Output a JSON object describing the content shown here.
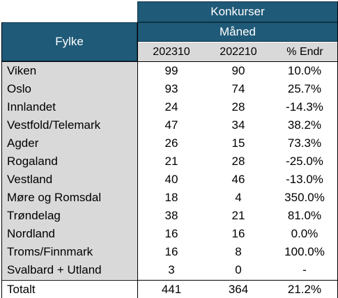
{
  "header": {
    "group_title": "Konkurser",
    "period_label": "Måned",
    "row_label": "Fylke"
  },
  "columns": [
    "202310",
    "202210",
    "% Endr"
  ],
  "rows": [
    {
      "fylke": "Viken",
      "v2023": "99",
      "v2022": "90",
      "pct": "10.0%"
    },
    {
      "fylke": "Oslo",
      "v2023": "93",
      "v2022": "74",
      "pct": "25.7%"
    },
    {
      "fylke": "Innlandet",
      "v2023": "24",
      "v2022": "28",
      "pct": "-14.3%"
    },
    {
      "fylke": "Vestfold/Telemark",
      "v2023": "47",
      "v2022": "34",
      "pct": "38.2%"
    },
    {
      "fylke": "Agder",
      "v2023": "26",
      "v2022": "15",
      "pct": "73.3%"
    },
    {
      "fylke": "Rogaland",
      "v2023": "21",
      "v2022": "28",
      "pct": "-25.0%"
    },
    {
      "fylke": "Vestland",
      "v2023": "40",
      "v2022": "46",
      "pct": "-13.0%"
    },
    {
      "fylke": "Møre og Romsdal",
      "v2023": "18",
      "v2022": "4",
      "pct": "350.0%"
    },
    {
      "fylke": "Trøndelag",
      "v2023": "38",
      "v2022": "21",
      "pct": "81.0%"
    },
    {
      "fylke": "Nordland",
      "v2023": "16",
      "v2022": "16",
      "pct": "0.0%"
    },
    {
      "fylke": "Troms/Finnmark",
      "v2023": "16",
      "v2022": "8",
      "pct": "100.0%"
    },
    {
      "fylke": "Svalbard + Utland",
      "v2023": "3",
      "v2022": "0",
      "pct": "-"
    }
  ],
  "total": {
    "fylke": "Totalt",
    "v2023": "441",
    "v2022": "364",
    "pct": "21.2%"
  },
  "colors": {
    "header_bg": "#1f5a78",
    "label_bg": "#d9d9d9"
  }
}
